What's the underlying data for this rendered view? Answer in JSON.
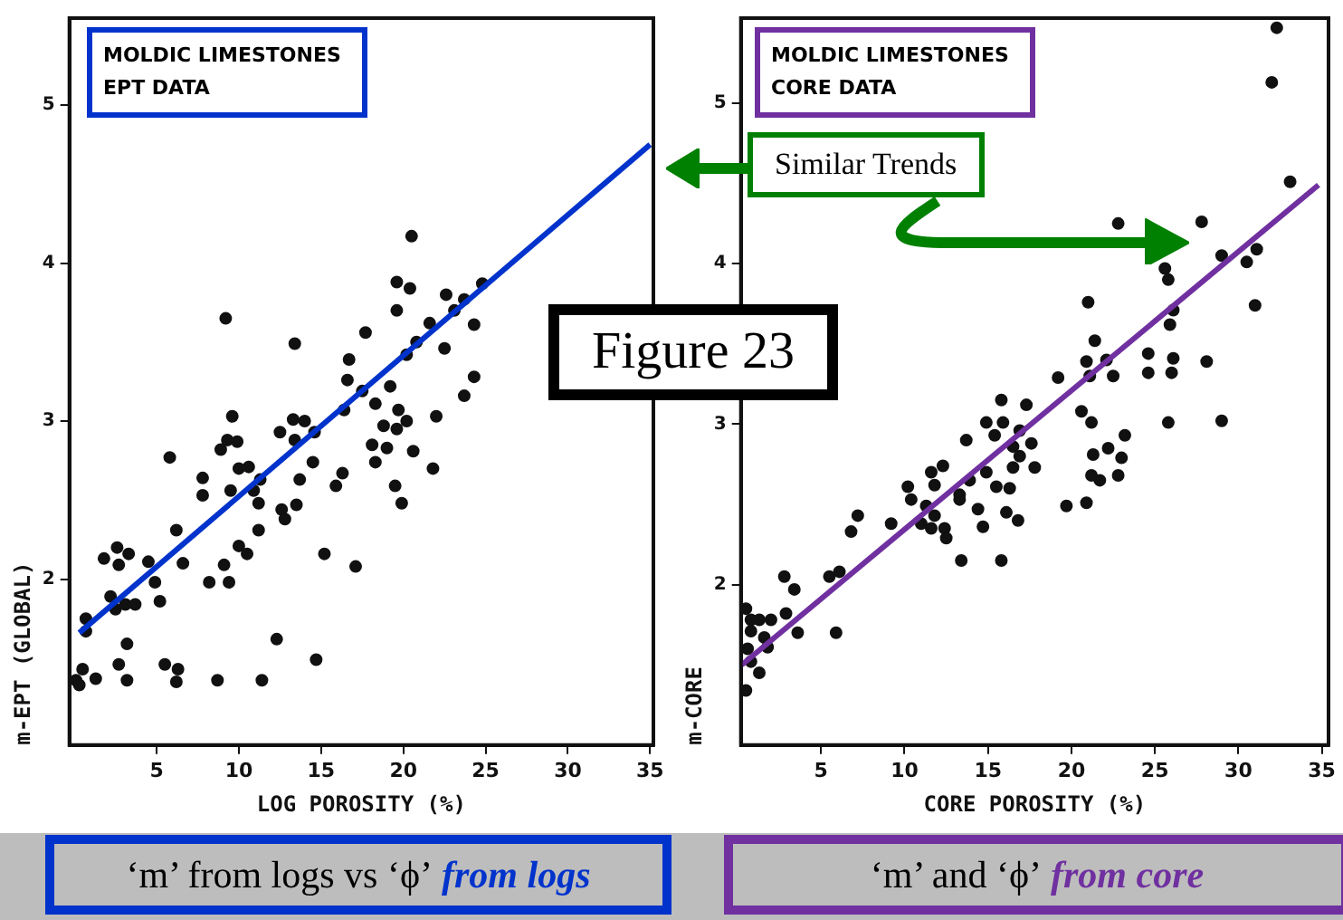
{
  "chart_data": [
    {
      "type": "scatter",
      "title": "MOLDIC LIMESTONES",
      "subtitle": "EPT DATA",
      "xlabel": "LOG POROSITY (%)",
      "ylabel": "m-EPT (GLOBAL)",
      "xlim": [
        -0.3,
        35.2
      ],
      "ylim": [
        0.95,
        5.55
      ],
      "xticks": [
        5,
        10,
        15,
        20,
        25,
        30,
        35
      ],
      "yticks": [
        2,
        3,
        4,
        5
      ],
      "grid": false,
      "legend": false,
      "marker": "circle",
      "series": [
        {
          "color": "#111111",
          "x": [
            20.5,
            19.6,
            20.4,
            19.6,
            22.6,
            23.7,
            24.8,
            23.1,
            24.3,
            21.6,
            20.8,
            20.2,
            22.5,
            24.3,
            23.7,
            22.0,
            21.8,
            17.7,
            16.7,
            16.6,
            17.5,
            16.4,
            18.3,
            19.2,
            19.7,
            20.2,
            18.8,
            19.6,
            18.1,
            19.0,
            18.3,
            20.6,
            19.5,
            19.9,
            16.3,
            15.9,
            17.1,
            13.4,
            13.3,
            14.0,
            12.5,
            13.4,
            14.6,
            13.7,
            14.5,
            13.5,
            12.6,
            12.8,
            15.2,
            14.7,
            12.3,
            11.4,
            8.7,
            9.2,
            9.6,
            9.3,
            9.9,
            8.9,
            10.0,
            10.6,
            9.5,
            7.8,
            7.8,
            10.9,
            11.3,
            11.2,
            10.0,
            10.5,
            11.2,
            9.1,
            9.4,
            8.2,
            5.8,
            6.2,
            6.6,
            4.5,
            4.9,
            5.2,
            1.8,
            2.6,
            2.7,
            3.3,
            2.2,
            2.5,
            3.1,
            3.7,
            3.2,
            2.7,
            3.2,
            0.7,
            0.7,
            0.5,
            0.1,
            0.3,
            1.3,
            5.5,
            6.3,
            6.2
          ],
          "values": [
            4.17,
            3.88,
            3.84,
            3.7,
            3.8,
            3.77,
            3.87,
            3.7,
            3.61,
            3.62,
            3.5,
            3.42,
            3.46,
            3.28,
            3.16,
            3.03,
            2.7,
            3.56,
            3.39,
            3.26,
            3.19,
            3.07,
            3.11,
            3.22,
            3.07,
            3.0,
            2.97,
            2.95,
            2.85,
            2.83,
            2.74,
            2.81,
            2.59,
            2.48,
            2.67,
            2.59,
            2.08,
            3.49,
            3.01,
            3.0,
            2.93,
            2.88,
            2.93,
            2.63,
            2.74,
            2.47,
            2.44,
            2.38,
            2.16,
            1.49,
            1.62,
            1.36,
            1.36,
            3.65,
            3.03,
            2.88,
            2.87,
            2.82,
            2.7,
            2.71,
            2.56,
            2.64,
            2.53,
            2.56,
            2.63,
            2.48,
            2.21,
            2.16,
            2.31,
            2.09,
            1.98,
            1.98,
            2.77,
            2.31,
            2.1,
            2.11,
            1.98,
            1.86,
            2.13,
            2.2,
            2.09,
            2.16,
            1.89,
            1.81,
            1.84,
            1.84,
            1.59,
            1.46,
            1.36,
            1.75,
            1.67,
            1.43,
            1.36,
            1.33,
            1.37,
            1.46,
            1.43,
            1.35
          ]
        },
        {
          "type": "line",
          "marker": "none",
          "color": "#0033cc",
          "x": [
            0.3,
            35
          ],
          "values": [
            1.66,
            4.75
          ]
        }
      ],
      "annotations": [
        "Figure 23",
        "‘m’ from logs vs ‘ϕ’",
        "from logs"
      ]
    },
    {
      "type": "scatter",
      "title": "MOLDIC LIMESTONES",
      "subtitle": "CORE DATA",
      "xlabel": "CORE POROSITY (%)",
      "ylabel": "m-CORE",
      "xlim": [
        0.2,
        35.4
      ],
      "ylim": [
        1.0,
        5.53
      ],
      "xticks": [
        5,
        10,
        15,
        20,
        25,
        30,
        35
      ],
      "yticks": [
        2,
        3,
        4,
        5
      ],
      "grid": false,
      "legend": false,
      "marker": "circle",
      "series": [
        {
          "color": "#111111",
          "x": [
            32.3,
            32.0,
            33.1,
            22.8,
            27.8,
            29.0,
            30.5,
            31.1,
            31.0,
            25.6,
            25.8,
            21.0,
            26.1,
            25.9,
            21.4,
            24.6,
            26.1,
            28.1,
            20.9,
            22.1,
            21.1,
            22.5,
            24.6,
            26.0,
            19.2,
            20.6,
            21.2,
            25.8,
            29.0,
            23.2,
            22.2,
            21.3,
            23.0,
            21.2,
            21.7,
            22.8,
            19.7,
            20.9,
            15.8,
            17.3,
            14.9,
            15.9,
            13.7,
            15.4,
            16.9,
            17.6,
            16.5,
            16.9,
            16.5,
            17.8,
            14.9,
            13.9,
            15.5,
            16.3,
            12.3,
            11.6,
            11.8,
            10.2,
            10.4,
            13.3,
            13.3,
            11.3,
            14.4,
            14.7,
            16.1,
            16.8,
            13.4,
            15.8,
            11.8,
            11.6,
            12.4,
            12.5,
            11.0,
            9.2,
            7.2,
            6.8,
            5.5,
            6.1,
            5.9,
            2.8,
            3.4,
            2.9,
            3.6,
            0.5,
            0.8,
            1.3,
            2.0,
            0.8,
            1.6,
            1.8,
            0.6,
            0.8,
            1.3,
            0.5
          ],
          "values": [
            5.47,
            5.13,
            4.51,
            4.25,
            4.26,
            4.05,
            4.01,
            4.09,
            3.74,
            3.97,
            3.9,
            3.76,
            3.71,
            3.62,
            3.52,
            3.44,
            3.41,
            3.39,
            3.39,
            3.4,
            3.3,
            3.3,
            3.32,
            3.32,
            3.29,
            3.08,
            3.01,
            3.01,
            3.02,
            2.93,
            2.85,
            2.81,
            2.79,
            2.68,
            2.65,
            2.68,
            2.49,
            2.51,
            3.15,
            3.12,
            3.01,
            3.01,
            2.9,
            2.93,
            2.96,
            2.88,
            2.86,
            2.8,
            2.73,
            2.73,
            2.7,
            2.65,
            2.61,
            2.6,
            2.74,
            2.7,
            2.62,
            2.61,
            2.53,
            2.56,
            2.53,
            2.49,
            2.47,
            2.36,
            2.45,
            2.4,
            2.15,
            2.15,
            2.43,
            2.35,
            2.35,
            2.29,
            2.38,
            2.38,
            2.43,
            2.33,
            2.05,
            2.08,
            1.7,
            2.05,
            1.97,
            1.82,
            1.7,
            1.85,
            1.78,
            1.78,
            1.78,
            1.71,
            1.67,
            1.61,
            1.6,
            1.52,
            1.45,
            1.34
          ]
        },
        {
          "type": "line",
          "marker": "none",
          "color": "#7030a0",
          "x": [
            0.25,
            34.8
          ],
          "values": [
            1.5,
            4.49
          ]
        }
      ],
      "annotations": [
        "Similar Trends",
        "‘m’ and ‘ϕ’",
        "from core"
      ]
    }
  ]
}
